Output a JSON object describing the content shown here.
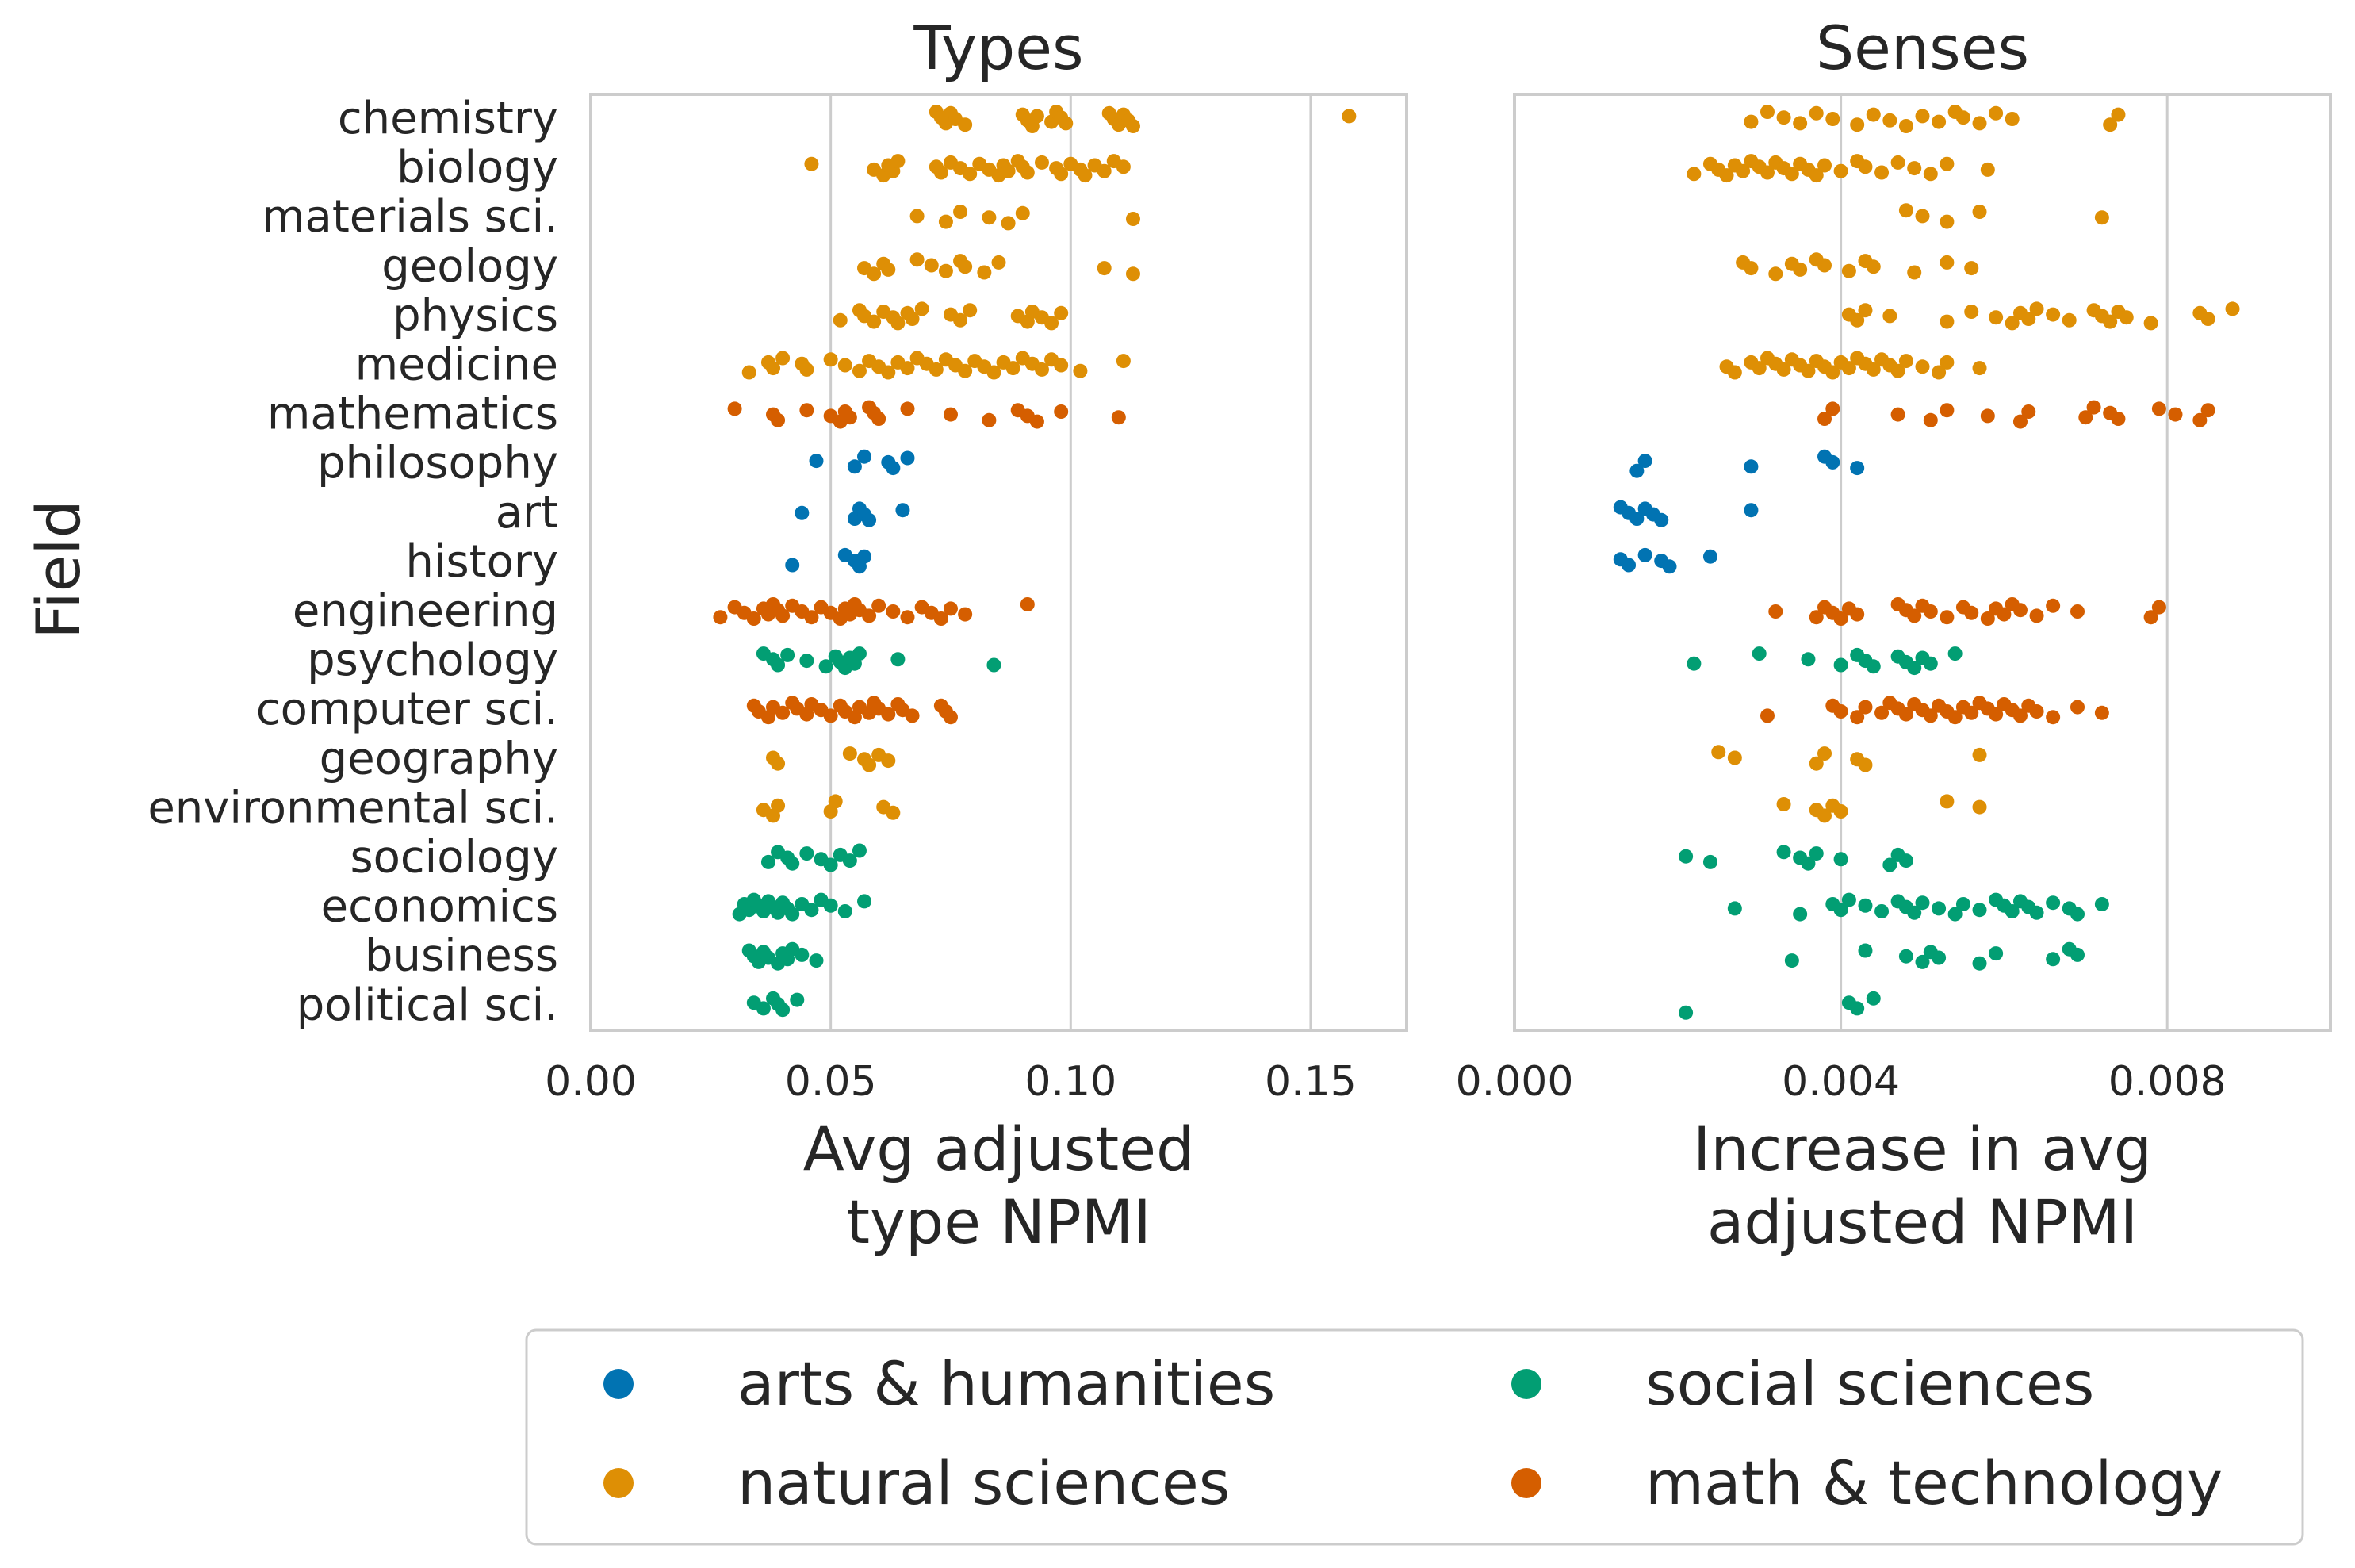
{
  "figure": {
    "y_axis_label": "Field",
    "legend": [
      {
        "label": "arts & humanities",
        "color": "#0173b2"
      },
      {
        "label": "natural sciences",
        "color": "#de8f05"
      },
      {
        "label": "social sciences",
        "color": "#029e73"
      },
      {
        "label": "math & technology",
        "color": "#d55e00"
      }
    ]
  },
  "chart_data": [
    {
      "type": "scatter",
      "title": "Types",
      "xlabel": "Avg adjusted\ntype NPMI",
      "ylabel": "Field",
      "xlim": [
        0,
        0.17
      ],
      "xticks": [
        "0.00",
        "0.05",
        "0.10",
        "0.15"
      ],
      "xtick_values": [
        0,
        0.05,
        0.1,
        0.15
      ],
      "grid": "vertical",
      "categories": [
        "chemistry",
        "biology",
        "materials sci.",
        "geology",
        "physics",
        "medicine",
        "mathematics",
        "philosophy",
        "art",
        "history",
        "engineering",
        "psychology",
        "computer sci.",
        "geography",
        "environmental sci.",
        "sociology",
        "economics",
        "business",
        "political sci."
      ],
      "group_of_category": {
        "chemistry": "natural sciences",
        "biology": "natural sciences",
        "materials sci.": "natural sciences",
        "geology": "natural sciences",
        "physics": "natural sciences",
        "medicine": "natural sciences",
        "mathematics": "math & technology",
        "philosophy": "arts & humanities",
        "art": "arts & humanities",
        "history": "arts & humanities",
        "engineering": "math & technology",
        "psychology": "social sciences",
        "computer sci.": "math & technology",
        "geography": "natural sciences",
        "environmental sci.": "natural sciences",
        "sociology": "social sciences",
        "economics": "social sciences",
        "business": "social sciences",
        "political sci.": "social sciences"
      },
      "points": {
        "chemistry": [
          0.072,
          0.073,
          0.074,
          0.075,
          0.076,
          0.078,
          0.09,
          0.091,
          0.092,
          0.093,
          0.096,
          0.097,
          0.098,
          0.099,
          0.108,
          0.109,
          0.11,
          0.111,
          0.112,
          0.113,
          0.158
        ],
        "biology": [
          0.046,
          0.059,
          0.061,
          0.062,
          0.063,
          0.064,
          0.072,
          0.073,
          0.075,
          0.077,
          0.079,
          0.081,
          0.083,
          0.085,
          0.086,
          0.087,
          0.089,
          0.09,
          0.091,
          0.094,
          0.097,
          0.098,
          0.1,
          0.102,
          0.103,
          0.105,
          0.107,
          0.109,
          0.111
        ],
        "materials sci.": [
          0.068,
          0.074,
          0.077,
          0.083,
          0.087,
          0.09,
          0.113
        ],
        "geology": [
          0.057,
          0.059,
          0.061,
          0.062,
          0.068,
          0.071,
          0.074,
          0.077,
          0.078,
          0.082,
          0.085,
          0.107,
          0.113
        ],
        "physics": [
          0.052,
          0.056,
          0.057,
          0.059,
          0.061,
          0.063,
          0.064,
          0.066,
          0.067,
          0.069,
          0.075,
          0.077,
          0.079,
          0.089,
          0.091,
          0.092,
          0.094,
          0.096,
          0.098
        ],
        "medicine": [
          0.033,
          0.037,
          0.038,
          0.04,
          0.044,
          0.045,
          0.05,
          0.053,
          0.056,
          0.058,
          0.06,
          0.062,
          0.064,
          0.066,
          0.068,
          0.07,
          0.072,
          0.074,
          0.076,
          0.078,
          0.08,
          0.082,
          0.084,
          0.086,
          0.088,
          0.09,
          0.092,
          0.094,
          0.096,
          0.098,
          0.102,
          0.111
        ],
        "mathematics": [
          0.03,
          0.038,
          0.039,
          0.045,
          0.05,
          0.052,
          0.053,
          0.054,
          0.058,
          0.059,
          0.06,
          0.066,
          0.075,
          0.083,
          0.089,
          0.091,
          0.093,
          0.098,
          0.11
        ],
        "philosophy": [
          0.047,
          0.055,
          0.057,
          0.062,
          0.063,
          0.066
        ],
        "art": [
          0.044,
          0.055,
          0.056,
          0.057,
          0.058,
          0.065
        ],
        "history": [
          0.042,
          0.053,
          0.055,
          0.056,
          0.057
        ],
        "engineering": [
          0.027,
          0.03,
          0.032,
          0.034,
          0.036,
          0.037,
          0.038,
          0.039,
          0.04,
          0.042,
          0.044,
          0.046,
          0.048,
          0.05,
          0.052,
          0.053,
          0.054,
          0.055,
          0.056,
          0.058,
          0.06,
          0.063,
          0.066,
          0.069,
          0.071,
          0.073,
          0.075,
          0.078,
          0.091
        ],
        "psychology": [
          0.036,
          0.038,
          0.039,
          0.041,
          0.045,
          0.049,
          0.051,
          0.052,
          0.053,
          0.054,
          0.055,
          0.056,
          0.064,
          0.084
        ],
        "computer sci.": [
          0.034,
          0.035,
          0.037,
          0.038,
          0.04,
          0.042,
          0.043,
          0.045,
          0.046,
          0.048,
          0.05,
          0.052,
          0.053,
          0.055,
          0.056,
          0.058,
          0.059,
          0.06,
          0.062,
          0.064,
          0.065,
          0.067,
          0.073,
          0.074,
          0.075
        ],
        "geography": [
          0.038,
          0.039,
          0.054,
          0.057,
          0.058,
          0.06,
          0.062
        ],
        "environmental sci.": [
          0.036,
          0.038,
          0.039,
          0.05,
          0.051,
          0.061,
          0.063
        ],
        "sociology": [
          0.037,
          0.039,
          0.041,
          0.042,
          0.045,
          0.048,
          0.05,
          0.052,
          0.054,
          0.056
        ],
        "economics": [
          0.031,
          0.032,
          0.033,
          0.034,
          0.035,
          0.036,
          0.037,
          0.038,
          0.039,
          0.04,
          0.041,
          0.042,
          0.044,
          0.046,
          0.048,
          0.05,
          0.053,
          0.057
        ],
        "business": [
          0.033,
          0.034,
          0.035,
          0.036,
          0.037,
          0.039,
          0.04,
          0.041,
          0.042,
          0.044,
          0.047
        ],
        "political sci.": [
          0.034,
          0.036,
          0.038,
          0.039,
          0.04,
          0.043
        ]
      }
    },
    {
      "type": "scatter",
      "title": "Senses",
      "xlabel": "Increase in avg\nadjusted NPMI",
      "ylabel": "",
      "xlim": [
        0,
        0.01
      ],
      "xticks": [
        "0.000",
        "0.004",
        "0.008"
      ],
      "xtick_values": [
        0,
        0.004,
        0.008
      ],
      "grid": "vertical",
      "categories": [
        "chemistry",
        "biology",
        "materials sci.",
        "geology",
        "physics",
        "medicine",
        "mathematics",
        "philosophy",
        "art",
        "history",
        "engineering",
        "psychology",
        "computer sci.",
        "geography",
        "environmental sci.",
        "sociology",
        "economics",
        "business",
        "political sci."
      ],
      "group_of_category": {
        "chemistry": "natural sciences",
        "biology": "natural sciences",
        "materials sci.": "natural sciences",
        "geology": "natural sciences",
        "physics": "natural sciences",
        "medicine": "natural sciences",
        "mathematics": "math & technology",
        "philosophy": "arts & humanities",
        "art": "arts & humanities",
        "history": "arts & humanities",
        "engineering": "math & technology",
        "psychology": "social sciences",
        "computer sci.": "math & technology",
        "geography": "natural sciences",
        "environmental sci.": "natural sciences",
        "sociology": "social sciences",
        "economics": "social sciences",
        "business": "social sciences",
        "political sci.": "social sciences"
      },
      "points": {
        "chemistry": [
          0.0029,
          0.0031,
          0.0033,
          0.0035,
          0.0037,
          0.0039,
          0.0042,
          0.0044,
          0.0046,
          0.0048,
          0.005,
          0.0052,
          0.0054,
          0.0055,
          0.0057,
          0.0059,
          0.0061,
          0.0073,
          0.0074
        ],
        "biology": [
          0.0022,
          0.0024,
          0.0025,
          0.0026,
          0.0027,
          0.0028,
          0.0029,
          0.003,
          0.0031,
          0.0032,
          0.0033,
          0.0034,
          0.0035,
          0.0036,
          0.0037,
          0.0038,
          0.004,
          0.0042,
          0.0043,
          0.0045,
          0.0047,
          0.0049,
          0.0051,
          0.0053,
          0.0058
        ],
        "materials sci.": [
          0.0048,
          0.005,
          0.0053,
          0.0057,
          0.0072
        ],
        "geology": [
          0.0028,
          0.0029,
          0.0032,
          0.0034,
          0.0035,
          0.0037,
          0.0038,
          0.0041,
          0.0043,
          0.0044,
          0.0049,
          0.0053,
          0.0056
        ],
        "physics": [
          0.0041,
          0.0042,
          0.0043,
          0.0046,
          0.0053,
          0.0056,
          0.0059,
          0.0061,
          0.0062,
          0.0063,
          0.0064,
          0.0066,
          0.0068,
          0.0071,
          0.0072,
          0.0073,
          0.0074,
          0.0075,
          0.0078,
          0.0084,
          0.0085,
          0.0088
        ],
        "medicine": [
          0.0026,
          0.0027,
          0.0029,
          0.003,
          0.0031,
          0.0032,
          0.0033,
          0.0034,
          0.0035,
          0.0036,
          0.0037,
          0.0038,
          0.0039,
          0.004,
          0.0041,
          0.0042,
          0.0043,
          0.0044,
          0.0045,
          0.0046,
          0.0047,
          0.0048,
          0.005,
          0.0052,
          0.0053,
          0.0057
        ],
        "mathematics": [
          0.0038,
          0.0039,
          0.0047,
          0.0051,
          0.0053,
          0.0058,
          0.0062,
          0.0063,
          0.007,
          0.0071,
          0.0073,
          0.0074,
          0.0079,
          0.0081,
          0.0084,
          0.0085
        ],
        "philosophy": [
          0.0015,
          0.0016,
          0.0029,
          0.0038,
          0.0039,
          0.0042
        ],
        "art": [
          0.0013,
          0.0014,
          0.0015,
          0.0016,
          0.0017,
          0.0018,
          0.0029
        ],
        "history": [
          0.0013,
          0.0014,
          0.0016,
          0.0018,
          0.0019,
          0.0024
        ],
        "engineering": [
          0.0032,
          0.0037,
          0.0038,
          0.0039,
          0.004,
          0.0041,
          0.0042,
          0.0047,
          0.0048,
          0.0049,
          0.005,
          0.0051,
          0.0053,
          0.0055,
          0.0056,
          0.0058,
          0.0059,
          0.006,
          0.0061,
          0.0062,
          0.0064,
          0.0066,
          0.0069,
          0.0078,
          0.0079
        ],
        "psychology": [
          0.0022,
          0.003,
          0.0036,
          0.004,
          0.0042,
          0.0043,
          0.0044,
          0.0047,
          0.0048,
          0.0049,
          0.005,
          0.0051,
          0.0054
        ],
        "computer sci.": [
          0.0031,
          0.0039,
          0.004,
          0.0042,
          0.0043,
          0.0045,
          0.0046,
          0.0047,
          0.0048,
          0.0049,
          0.005,
          0.0051,
          0.0052,
          0.0053,
          0.0054,
          0.0055,
          0.0056,
          0.0057,
          0.0058,
          0.0059,
          0.006,
          0.0061,
          0.0062,
          0.0063,
          0.0064,
          0.0066,
          0.0069,
          0.0072
        ],
        "geography": [
          0.0025,
          0.0027,
          0.0037,
          0.0038,
          0.0042,
          0.0043,
          0.0057
        ],
        "environmental sci.": [
          0.0033,
          0.0037,
          0.0038,
          0.0039,
          0.004,
          0.0053,
          0.0057
        ],
        "sociology": [
          0.0021,
          0.0024,
          0.0033,
          0.0035,
          0.0036,
          0.0037,
          0.004,
          0.0046,
          0.0047,
          0.0048
        ],
        "economics": [
          0.0027,
          0.0035,
          0.0039,
          0.004,
          0.0041,
          0.0043,
          0.0045,
          0.0047,
          0.0048,
          0.0049,
          0.005,
          0.0052,
          0.0054,
          0.0055,
          0.0057,
          0.0059,
          0.006,
          0.0061,
          0.0062,
          0.0063,
          0.0064,
          0.0066,
          0.0068,
          0.0069,
          0.0072
        ],
        "business": [
          0.0034,
          0.0043,
          0.0048,
          0.005,
          0.0051,
          0.0052,
          0.0057,
          0.0059,
          0.0066,
          0.0068,
          0.0069
        ],
        "political sci.": [
          0.0021,
          0.0041,
          0.0042,
          0.0044
        ]
      }
    }
  ]
}
